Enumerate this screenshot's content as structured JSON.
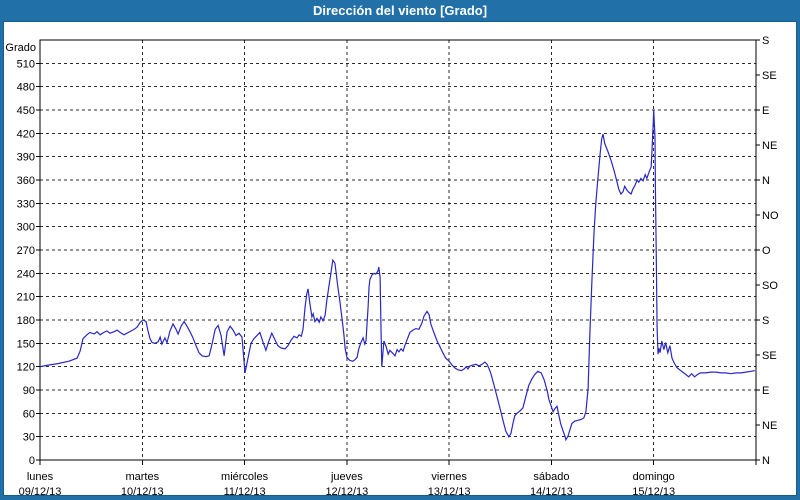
{
  "title": "Dirección del viento [Grado]",
  "colors": {
    "frame": "#2270a8",
    "titlebar": "#2270a8",
    "title_text": "#ffffff",
    "background": "#ffffff",
    "inner_border": "#175a8c",
    "axis": "#000000",
    "grid": "#2b2b2b",
    "line": "#2828c4"
  },
  "chart_data": {
    "type": "line",
    "title": "Dirección del viento [Grado]",
    "ylabel": "Grado",
    "y_unit": "degrees",
    "ylim": [
      0,
      540
    ],
    "y_tick_step": 30,
    "y_tick_labels": [
      "0",
      "30",
      "60",
      "90",
      "120",
      "150",
      "180",
      "210",
      "240",
      "270",
      "300",
      "330",
      "360",
      "390",
      "420",
      "450",
      "480",
      "510"
    ],
    "right_axis_labels": [
      {
        "value": 540,
        "label": "S"
      },
      {
        "value": 495,
        "label": "SE"
      },
      {
        "value": 450,
        "label": "E"
      },
      {
        "value": 405,
        "label": "NE"
      },
      {
        "value": 360,
        "label": "N"
      },
      {
        "value": 315,
        "label": "NO"
      },
      {
        "value": 270,
        "label": "O"
      },
      {
        "value": 225,
        "label": "SO"
      },
      {
        "value": 180,
        "label": "S"
      },
      {
        "value": 135,
        "label": "SE"
      },
      {
        "value": 90,
        "label": "E"
      },
      {
        "value": 45,
        "label": "NE"
      },
      {
        "value": 0,
        "label": "N"
      }
    ],
    "x_axis": {
      "hours_total": 168,
      "day_span_hours": 24,
      "days": [
        {
          "name": "lunes",
          "date": "09/12/13"
        },
        {
          "name": "martes",
          "date": "10/12/13"
        },
        {
          "name": "miércoles",
          "date": "11/12/13"
        },
        {
          "name": "jueves",
          "date": "12/12/13"
        },
        {
          "name": "viernes",
          "date": "13/12/13"
        },
        {
          "name": "sábado",
          "date": "14/12/13"
        },
        {
          "name": "domingo",
          "date": "15/12/13"
        }
      ]
    },
    "grid": {
      "horizontal_step": 30,
      "vertical_every_hours": 24,
      "style": "dashed"
    },
    "legend": "none",
    "series": [
      {
        "name": "Dirección del viento",
        "color": "#2828c4",
        "points": [
          [
            0,
            120
          ],
          [
            1.9,
            122
          ],
          [
            4.2,
            124
          ],
          [
            6.8,
            127
          ],
          [
            8.7,
            131
          ],
          [
            9.4,
            140
          ],
          [
            10.1,
            156
          ],
          [
            11,
            161
          ],
          [
            11.7,
            164
          ],
          [
            12.7,
            162
          ],
          [
            13.4,
            165
          ],
          [
            14.1,
            161
          ],
          [
            15,
            164
          ],
          [
            15.7,
            166
          ],
          [
            16.4,
            163
          ],
          [
            17.4,
            165
          ],
          [
            18.1,
            167
          ],
          [
            18.8,
            164
          ],
          [
            19.7,
            161
          ],
          [
            20.4,
            163
          ],
          [
            21.4,
            166
          ],
          [
            22.1,
            168
          ],
          [
            22.8,
            171
          ],
          [
            23.5,
            177
          ],
          [
            24.2,
            180
          ],
          [
            24.9,
            178
          ],
          [
            25.3,
            167
          ],
          [
            25.8,
            156
          ],
          [
            26.3,
            151
          ],
          [
            27,
            150
          ],
          [
            27.7,
            152
          ],
          [
            28.2,
            158
          ],
          [
            28.6,
            149
          ],
          [
            29.3,
            157
          ],
          [
            29.8,
            151
          ],
          [
            30.5,
            166
          ],
          [
            31.2,
            175
          ],
          [
            31.9,
            168
          ],
          [
            32.4,
            162
          ],
          [
            33.1,
            172
          ],
          [
            33.8,
            178
          ],
          [
            34.5,
            172
          ],
          [
            35.2,
            165
          ],
          [
            35.9,
            157
          ],
          [
            36.6,
            147
          ],
          [
            37.3,
            138
          ],
          [
            38,
            134
          ],
          [
            38.9,
            133
          ],
          [
            39.7,
            134
          ],
          [
            40.4,
            150
          ],
          [
            41.1,
            168
          ],
          [
            41.8,
            173
          ],
          [
            42.5,
            160
          ],
          [
            43.2,
            134
          ],
          [
            43.9,
            165
          ],
          [
            44.6,
            172
          ],
          [
            45.3,
            167
          ],
          [
            46,
            160
          ],
          [
            46.7,
            163
          ],
          [
            47.4,
            158
          ],
          [
            48.1,
            112
          ],
          [
            48.8,
            131
          ],
          [
            49.5,
            150
          ],
          [
            50.2,
            156
          ],
          [
            50.9,
            160
          ],
          [
            51.6,
            164
          ],
          [
            52.3,
            152
          ],
          [
            53,
            141
          ],
          [
            53.7,
            153
          ],
          [
            54.4,
            163
          ],
          [
            55.1,
            155
          ],
          [
            55.8,
            147
          ],
          [
            56.6,
            144
          ],
          [
            57.5,
            143
          ],
          [
            58.2,
            147
          ],
          [
            58.9,
            154
          ],
          [
            59.6,
            159
          ],
          [
            60.3,
            157
          ],
          [
            60.8,
            161
          ],
          [
            61.3,
            159
          ],
          [
            61.7,
            168
          ],
          [
            62.2,
            197
          ],
          [
            62.6,
            214
          ],
          [
            62.9,
            220
          ],
          [
            63.3,
            202
          ],
          [
            63.8,
            184
          ],
          [
            64.1,
            188
          ],
          [
            64.5,
            178
          ],
          [
            65,
            182
          ],
          [
            65.5,
            177
          ],
          [
            65.9,
            184
          ],
          [
            66.4,
            179
          ],
          [
            66.9,
            186
          ],
          [
            67.3,
            205
          ],
          [
            67.8,
            224
          ],
          [
            68.3,
            242
          ],
          [
            68.7,
            257
          ],
          [
            69.2,
            253
          ],
          [
            69.4,
            244
          ],
          [
            69.9,
            222
          ],
          [
            70.4,
            203
          ],
          [
            70.6,
            193
          ],
          [
            70.9,
            180
          ],
          [
            71.3,
            161
          ],
          [
            71.6,
            143
          ],
          [
            72,
            132
          ],
          [
            72.7,
            128
          ],
          [
            73.4,
            127
          ],
          [
            73.9,
            129
          ],
          [
            74.4,
            132
          ],
          [
            74.8,
            143
          ],
          [
            75.3,
            151
          ],
          [
            75.8,
            157
          ],
          [
            76.2,
            149
          ],
          [
            76.5,
            153
          ],
          [
            76.7,
            172
          ],
          [
            77,
            199
          ],
          [
            77.2,
            222
          ],
          [
            77.4,
            232
          ],
          [
            77.9,
            238
          ],
          [
            78.4,
            240
          ],
          [
            78.8,
            239
          ],
          [
            79.3,
            243
          ],
          [
            79.5,
            248
          ],
          [
            79.8,
            235
          ],
          [
            80,
            168
          ],
          [
            80.2,
            120
          ],
          [
            80.7,
            153
          ],
          [
            81.2,
            146
          ],
          [
            81.7,
            136
          ],
          [
            82.1,
            141
          ],
          [
            82.8,
            137
          ],
          [
            83.3,
            134
          ],
          [
            83.8,
            142
          ],
          [
            84.2,
            139
          ],
          [
            84.7,
            143
          ],
          [
            85.2,
            140
          ],
          [
            85.6,
            147
          ],
          [
            86.1,
            154
          ],
          [
            86.8,
            164
          ],
          [
            87.5,
            167
          ],
          [
            88.2,
            169
          ],
          [
            88.9,
            168
          ],
          [
            89.6,
            176
          ],
          [
            90.1,
            185
          ],
          [
            90.8,
            191
          ],
          [
            91.3,
            187
          ],
          [
            91.7,
            175
          ],
          [
            92.4,
            164
          ],
          [
            93.1,
            154
          ],
          [
            93.8,
            146
          ],
          [
            94.5,
            138
          ],
          [
            95.2,
            131
          ],
          [
            96,
            127
          ],
          [
            96.7,
            122
          ],
          [
            97.4,
            118
          ],
          [
            98.1,
            116
          ],
          [
            98.8,
            115
          ],
          [
            99.5,
            117
          ],
          [
            100,
            120
          ],
          [
            100.4,
            117
          ],
          [
            100.9,
            121
          ],
          [
            101.6,
            122
          ],
          [
            102.3,
            123
          ],
          [
            103,
            121
          ],
          [
            103.7,
            123
          ],
          [
            104.4,
            126
          ],
          [
            104.9,
            123
          ],
          [
            105.4,
            117
          ],
          [
            105.8,
            111
          ],
          [
            106.5,
            97
          ],
          [
            107.2,
            82
          ],
          [
            107.9,
            67
          ],
          [
            108.6,
            52
          ],
          [
            109.3,
            37
          ],
          [
            110,
            30
          ],
          [
            110.5,
            34
          ],
          [
            111,
            48
          ],
          [
            111.4,
            57
          ],
          [
            111.9,
            60
          ],
          [
            112.6,
            63
          ],
          [
            113.3,
            67
          ],
          [
            114,
            82
          ],
          [
            114.7,
            96
          ],
          [
            115.4,
            104
          ],
          [
            116.1,
            110
          ],
          [
            116.8,
            114
          ],
          [
            117.6,
            112
          ],
          [
            118.3,
            103
          ],
          [
            119,
            89
          ],
          [
            119.4,
            78
          ],
          [
            119.9,
            70
          ],
          [
            120.4,
            62
          ],
          [
            120.8,
            66
          ],
          [
            121.3,
            69
          ],
          [
            121.8,
            56
          ],
          [
            122.2,
            46
          ],
          [
            122.7,
            38
          ],
          [
            123.2,
            30
          ],
          [
            123.4,
            26
          ],
          [
            123.9,
            31
          ],
          [
            124.4,
            40
          ],
          [
            124.8,
            47
          ],
          [
            125.5,
            50
          ],
          [
            126.2,
            51
          ],
          [
            126.9,
            52
          ],
          [
            127.6,
            54
          ],
          [
            128.1,
            62
          ],
          [
            128.6,
            92
          ],
          [
            129,
            160
          ],
          [
            129.5,
            230
          ],
          [
            130,
            292
          ],
          [
            130.4,
            330
          ],
          [
            130.9,
            362
          ],
          [
            131.4,
            392
          ],
          [
            131.8,
            413
          ],
          [
            132.1,
            419
          ],
          [
            132.5,
            407
          ],
          [
            133.3,
            396
          ],
          [
            134,
            385
          ],
          [
            134.7,
            372
          ],
          [
            135.4,
            357
          ],
          [
            135.8,
            348
          ],
          [
            136.3,
            342
          ],
          [
            136.8,
            345
          ],
          [
            137.2,
            352
          ],
          [
            137.7,
            347
          ],
          [
            138.2,
            344
          ],
          [
            138.7,
            342
          ],
          [
            139.1,
            348
          ],
          [
            139.6,
            353
          ],
          [
            140.1,
            360
          ],
          [
            140.5,
            357
          ],
          [
            141,
            362
          ],
          [
            141.5,
            359
          ],
          [
            142,
            367
          ],
          [
            142.4,
            362
          ],
          [
            142.9,
            370
          ],
          [
            143.4,
            377
          ],
          [
            143.6,
            398
          ],
          [
            143.9,
            435
          ],
          [
            144,
            450
          ],
          [
            144.3,
            415
          ],
          [
            144.4,
            350
          ],
          [
            144.6,
            260
          ],
          [
            144.8,
            170
          ],
          [
            145,
            136
          ],
          [
            145.2,
            144
          ],
          [
            145.5,
            138
          ],
          [
            145.9,
            153
          ],
          [
            146.4,
            142
          ],
          [
            146.8,
            151
          ],
          [
            147.3,
            138
          ],
          [
            147.8,
            147
          ],
          [
            148.3,
            131
          ],
          [
            148.7,
            126
          ],
          [
            149.4,
            119
          ],
          [
            150.1,
            116
          ],
          [
            150.8,
            113
          ],
          [
            151.5,
            110
          ],
          [
            152.2,
            107
          ],
          [
            152.9,
            111
          ],
          [
            153.6,
            107
          ],
          [
            154.3,
            110
          ],
          [
            155,
            112
          ],
          [
            156.2,
            112
          ],
          [
            157.4,
            113
          ],
          [
            158.6,
            113
          ],
          [
            159.8,
            112
          ],
          [
            160.9,
            112
          ],
          [
            162.1,
            111
          ],
          [
            163.3,
            112
          ],
          [
            164.5,
            112
          ],
          [
            165.6,
            113
          ],
          [
            166.8,
            114
          ],
          [
            167.7,
            115
          ]
        ]
      }
    ]
  }
}
